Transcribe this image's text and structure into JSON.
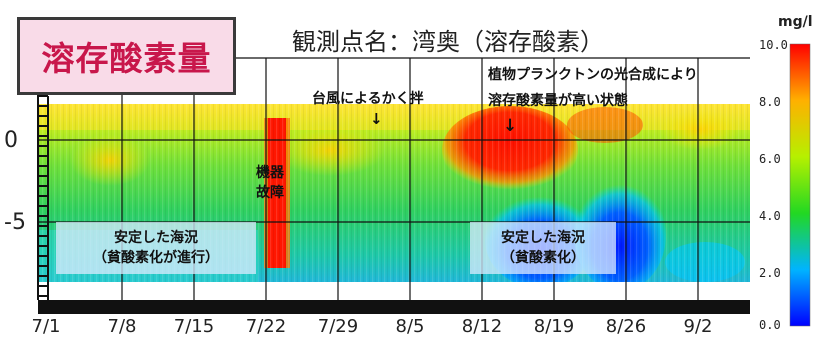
{
  "label_box": "溶存酸素量",
  "title": "観測点名：湾奥（溶存酸素）",
  "annotations": {
    "typhoon": "台風によるかく拌",
    "plankton_line1": "植物プランクトンの光合成により",
    "plankton_line2": "溶存酸素量が高い状態",
    "failure_line1": "機器",
    "failure_line2": "故障",
    "stable1_line1": "安定した海況",
    "stable1_line2": "（貧酸素化が進行）",
    "stable2_line1": "安定した海況",
    "stable2_line2": "（貧酸素化）",
    "arrow_thin": "↓",
    "arrow_bold": "↓"
  },
  "colors": {
    "low": "#0000ff",
    "mid_low": "#00c8ff",
    "mid": "#2ecc2e",
    "mid_high": "#ffff00",
    "high": "#ff0000"
  },
  "chart_data": {
    "type": "heatmap",
    "x_ticks": [
      "7/1",
      "7/8",
      "7/15",
      "7/22",
      "7/29",
      "8/5",
      "8/12",
      "8/19",
      "8/26",
      "9/2"
    ],
    "y_ticks": [
      "0",
      "-5"
    ],
    "y_tick_values": [
      0,
      -5
    ],
    "ylim": [
      -9,
      2
    ],
    "colorbar": {
      "unit": "mg/l",
      "labels": [
        "10.0",
        "8.0",
        "6.0",
        "4.0",
        "2.0",
        "0.0"
      ],
      "range": [
        0,
        10
      ]
    }
  }
}
